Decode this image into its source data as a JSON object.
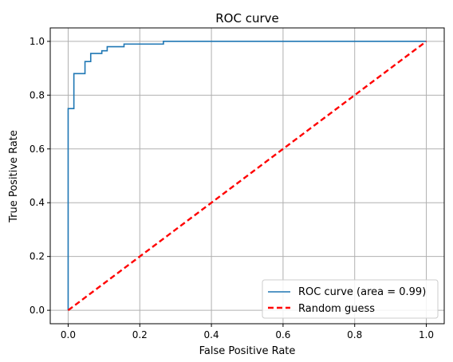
{
  "chart_data": {
    "type": "line",
    "title": "ROC curve",
    "xlabel": "False Positive Rate",
    "ylabel": "True Positive Rate",
    "xlim": [
      -0.05,
      1.05
    ],
    "ylim": [
      -0.05,
      1.05
    ],
    "xticks": [
      0.0,
      0.2,
      0.4,
      0.6,
      0.8,
      1.0
    ],
    "xtick_labels": [
      "0.0",
      "0.2",
      "0.4",
      "0.6",
      "0.8",
      "1.0"
    ],
    "yticks": [
      0.0,
      0.2,
      0.4,
      0.6,
      0.8,
      1.0
    ],
    "ytick_labels": [
      "0.0",
      "0.2",
      "0.4",
      "0.6",
      "0.8",
      "1.0"
    ],
    "grid": true,
    "legend_position": "lower-right",
    "series": [
      {
        "name": "ROC curve (area = 0.99)",
        "color": "#1f77b4",
        "style": "solid",
        "x": [
          0.0,
          0.0,
          0.0,
          0.016,
          0.016,
          0.047,
          0.047,
          0.063,
          0.063,
          0.094,
          0.094,
          0.109,
          0.109,
          0.156,
          0.156,
          0.266,
          0.266,
          1.0
        ],
        "y": [
          0.0,
          0.75,
          0.75,
          0.75,
          0.88,
          0.88,
          0.925,
          0.925,
          0.955,
          0.955,
          0.965,
          0.965,
          0.98,
          0.98,
          0.99,
          0.99,
          1.0,
          1.0
        ]
      },
      {
        "name": "Random guess",
        "color": "#ff0000",
        "style": "dashed",
        "x": [
          0.0,
          1.0
        ],
        "y": [
          0.0,
          1.0
        ]
      }
    ]
  }
}
